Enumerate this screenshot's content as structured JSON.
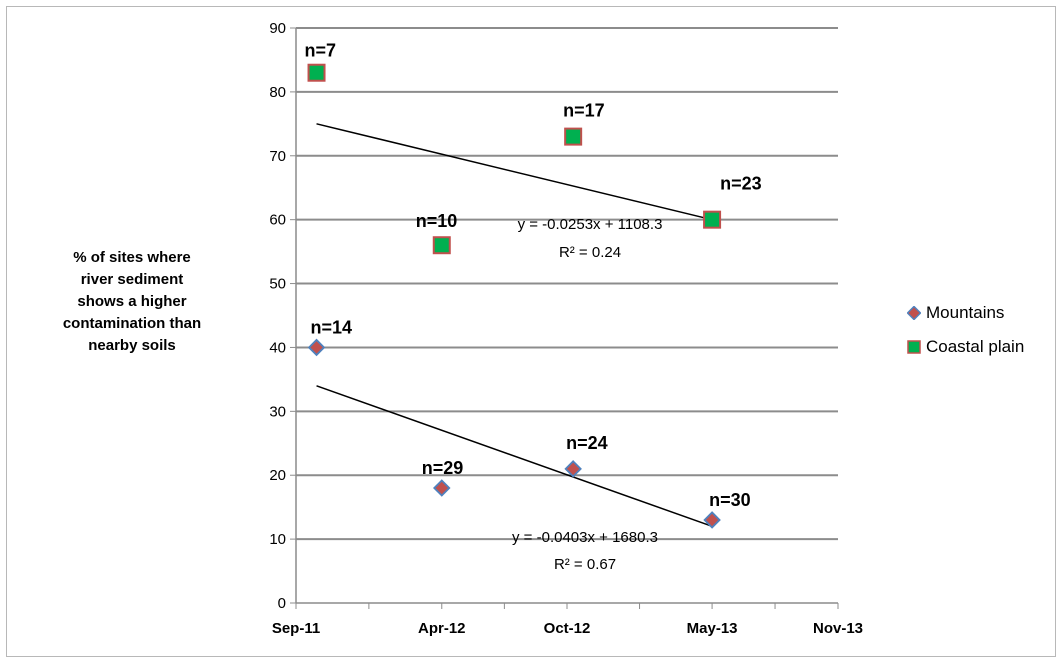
{
  "chart_data": {
    "type": "scatter",
    "ylabel": "% of sites  where river sediment shows a higher contamination than nearby soils",
    "ylabel_lines": [
      "% of sites  where",
      "river sediment",
      "shows a higher",
      "contamination than",
      "nearby soils"
    ],
    "xlabel": "",
    "ylim": [
      0,
      90
    ],
    "yticks": [
      0,
      10,
      20,
      30,
      40,
      50,
      60,
      70,
      80,
      90
    ],
    "xlim": [
      "2011-09-01",
      "2013-11-01"
    ],
    "xticks": [
      {
        "date": "2011-09-01",
        "label": "Sep-11"
      },
      {
        "date": "2012-04-01",
        "label": "Apr-12"
      },
      {
        "date": "2012-10-01",
        "label": "Oct-12"
      },
      {
        "date": "2013-05-01",
        "label": "May-13"
      },
      {
        "date": "2013-11-01",
        "label": "Nov-13"
      }
    ],
    "grid": "horizontal",
    "legend_position": "right",
    "series": [
      {
        "name": "Mountains",
        "marker": "diamond",
        "fill_color": "#c0504d",
        "edge_color": "#4f81bd",
        "points": [
          {
            "x": "2011-10-01",
            "y": 40,
            "label": "n=14"
          },
          {
            "x": "2012-04-01",
            "y": 18,
            "label": "n=29"
          },
          {
            "x": "2012-10-10",
            "y": 21,
            "label": "n=24"
          },
          {
            "x": "2013-05-01",
            "y": 13,
            "label": "n=30"
          }
        ],
        "trendline": {
          "equation": "y = -0.0403x + 1680.3",
          "r_squared": "R² = 0.67",
          "y_start": 34,
          "y_end": 12
        }
      },
      {
        "name": "Coastal plain",
        "marker": "square",
        "fill_color": "#00b050",
        "edge_color": "#c0504d",
        "points": [
          {
            "x": "2011-10-01",
            "y": 83,
            "label": "n=7"
          },
          {
            "x": "2012-04-01",
            "y": 56,
            "label": "n=10"
          },
          {
            "x": "2012-10-10",
            "y": 73,
            "label": "n=17"
          },
          {
            "x": "2013-05-01",
            "y": 60,
            "label": "n=23"
          }
        ],
        "trendline": {
          "equation": "y = -0.0253x + 1108.3",
          "r_squared": "R² = 0.24",
          "y_start": 75,
          "y_end": 60
        }
      }
    ]
  }
}
